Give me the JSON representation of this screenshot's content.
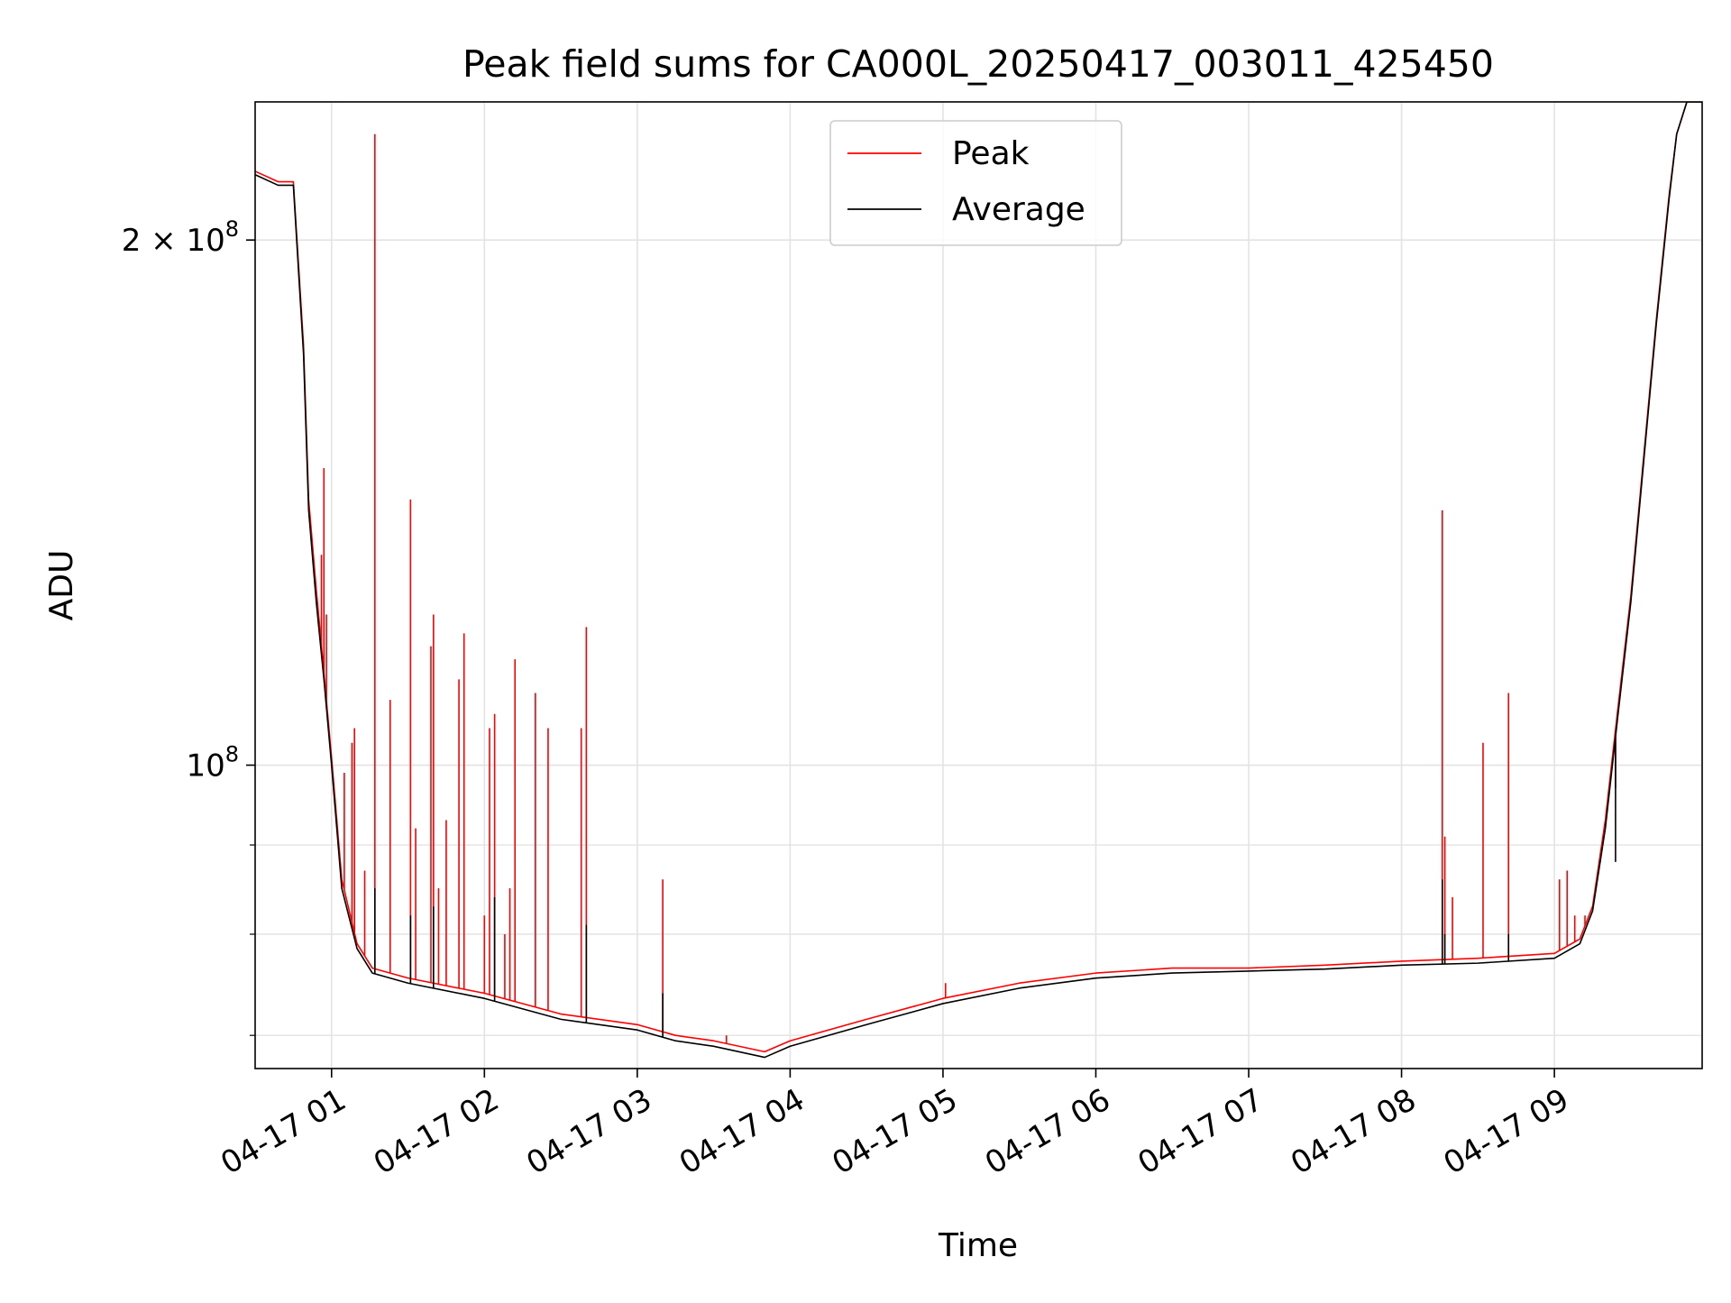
{
  "chart_data": {
    "type": "line",
    "title": "Peak field sums for CA000L_20250417_003011_425450",
    "xlabel": "Time",
    "ylabel": "ADU",
    "y_scale": "log",
    "grid": true,
    "legend_position": "top-center",
    "xlim": [
      "2025-04-17T00:30",
      "2025-04-17T09:58"
    ],
    "ylim": [
      67000000.0,
      240000000.0
    ],
    "x_ticks": [
      {
        "value": "2025-04-17T01:00",
        "label": "04-17 01"
      },
      {
        "value": "2025-04-17T02:00",
        "label": "04-17 02"
      },
      {
        "value": "2025-04-17T03:00",
        "label": "04-17 03"
      },
      {
        "value": "2025-04-17T04:00",
        "label": "04-17 04"
      },
      {
        "value": "2025-04-17T05:00",
        "label": "04-17 05"
      },
      {
        "value": "2025-04-17T06:00",
        "label": "04-17 06"
      },
      {
        "value": "2025-04-17T07:00",
        "label": "04-17 07"
      },
      {
        "value": "2025-04-17T08:00",
        "label": "04-17 08"
      },
      {
        "value": "2025-04-17T09:00",
        "label": "04-17 09"
      }
    ],
    "y_major_ticks": [
      {
        "value": 100000000,
        "base": "10",
        "exp": "8",
        "coef": ""
      },
      {
        "value": 200000000,
        "base": "10",
        "exp": "8",
        "coef": "2 × "
      }
    ],
    "y_minor_ticks": [
      70000000,
      80000000,
      90000000
    ],
    "series": [
      {
        "name": "Peak",
        "color": "#ff0000",
        "points": [
          [
            "2025-04-17T00:30",
            219000000.0
          ],
          [
            "2025-04-17T00:39",
            216000000.0
          ],
          [
            "2025-04-17T00:45",
            216000000.0
          ],
          [
            "2025-04-17T00:49",
            174000000.0
          ],
          [
            "2025-04-17T00:51",
            142000000.0
          ],
          [
            "2025-04-17T00:54",
            126000000.0
          ],
          [
            "2025-04-17T00:57",
            113000000.0
          ],
          [
            "2025-04-17T01:00",
            101000000.0
          ],
          [
            "2025-04-17T01:04",
            86000000.0
          ],
          [
            "2025-04-17T01:10",
            79000000.0
          ],
          [
            "2025-04-17T01:16",
            76500000.0
          ],
          [
            "2025-04-17T01:30",
            75500000.0
          ],
          [
            "2025-04-17T02:00",
            74000000.0
          ],
          [
            "2025-04-17T02:30",
            72000000.0
          ],
          [
            "2025-04-17T03:00",
            71000000.0
          ],
          [
            "2025-04-17T03:15",
            70000000.0
          ],
          [
            "2025-04-17T03:30",
            69500000.0
          ],
          [
            "2025-04-17T03:50",
            68500000.0
          ],
          [
            "2025-04-17T04:00",
            69500000.0
          ],
          [
            "2025-04-17T04:30",
            71500000.0
          ],
          [
            "2025-04-17T05:00",
            73500000.0
          ],
          [
            "2025-04-17T05:30",
            75000000.0
          ],
          [
            "2025-04-17T06:00",
            76000000.0
          ],
          [
            "2025-04-17T06:30",
            76500000.0
          ],
          [
            "2025-04-17T07:00",
            76500000.0
          ],
          [
            "2025-04-17T07:30",
            76800000.0
          ],
          [
            "2025-04-17T08:00",
            77200000.0
          ],
          [
            "2025-04-17T08:30",
            77500000.0
          ],
          [
            "2025-04-17T09:00",
            78000000.0
          ],
          [
            "2025-04-17T09:10",
            79500000.0
          ],
          [
            "2025-04-17T09:15",
            83000000.0
          ],
          [
            "2025-04-17T09:20",
            93000000.0
          ],
          [
            "2025-04-17T09:25",
            108000000.0
          ],
          [
            "2025-04-17T09:30",
            125000000.0
          ],
          [
            "2025-04-17T09:35",
            150000000.0
          ],
          [
            "2025-04-17T09:40",
            180000000.0
          ],
          [
            "2025-04-17T09:45",
            212000000.0
          ],
          [
            "2025-04-17T09:48",
            230000000.0
          ],
          [
            "2025-04-17T09:52",
            240000000.0
          ],
          [
            "2025-04-17T09:58",
            240000000.0
          ]
        ],
        "spikes": [
          [
            "2025-04-17T00:56",
            132000000.0
          ],
          [
            "2025-04-17T00:57",
            148000000.0
          ],
          [
            "2025-04-17T00:58",
            122000000.0
          ],
          [
            "2025-04-17T01:05",
            99000000.0
          ],
          [
            "2025-04-17T01:08",
            103000000.0
          ],
          [
            "2025-04-17T01:09",
            105000000.0
          ],
          [
            "2025-04-17T01:13",
            87000000.0
          ],
          [
            "2025-04-17T01:17",
            230000000.0
          ],
          [
            "2025-04-17T01:23",
            109000000.0
          ],
          [
            "2025-04-17T01:31",
            142000000.0
          ],
          [
            "2025-04-17T01:33",
            92000000.0
          ],
          [
            "2025-04-17T01:39",
            117000000.0
          ],
          [
            "2025-04-17T01:40",
            122000000.0
          ],
          [
            "2025-04-17T01:42",
            85000000.0
          ],
          [
            "2025-04-17T01:45",
            93000000.0
          ],
          [
            "2025-04-17T01:50",
            112000000.0
          ],
          [
            "2025-04-17T01:52",
            119000000.0
          ],
          [
            "2025-04-17T02:00",
            82000000.0
          ],
          [
            "2025-04-17T02:02",
            105000000.0
          ],
          [
            "2025-04-17T02:04",
            107000000.0
          ],
          [
            "2025-04-17T02:08",
            80000000.0
          ],
          [
            "2025-04-17T02:10",
            85000000.0
          ],
          [
            "2025-04-17T02:12",
            115000000.0
          ],
          [
            "2025-04-17T02:20",
            110000000.0
          ],
          [
            "2025-04-17T02:25",
            105000000.0
          ],
          [
            "2025-04-17T02:38",
            105000000.0
          ],
          [
            "2025-04-17T02:40",
            120000000.0
          ],
          [
            "2025-04-17T03:10",
            86000000.0
          ],
          [
            "2025-04-17T03:35",
            70000000.0
          ],
          [
            "2025-04-17T05:01",
            75000000.0
          ],
          [
            "2025-04-17T08:16",
            140000000.0
          ],
          [
            "2025-04-17T08:17",
            91000000.0
          ],
          [
            "2025-04-17T08:20",
            84000000.0
          ],
          [
            "2025-04-17T08:32",
            103000000.0
          ],
          [
            "2025-04-17T08:42",
            110000000.0
          ],
          [
            "2025-04-17T09:02",
            86000000.0
          ],
          [
            "2025-04-17T09:05",
            87000000.0
          ],
          [
            "2025-04-17T09:08",
            82000000.0
          ],
          [
            "2025-04-17T09:12",
            82000000.0
          ],
          [
            "2025-04-17T09:18",
            88000000.0
          ],
          [
            "2025-04-17T09:24",
            97000000.0
          ]
        ]
      },
      {
        "name": "Average",
        "color": "#000000",
        "points": [
          [
            "2025-04-17T00:30",
            218000000.0
          ],
          [
            "2025-04-17T00:39",
            215000000.0
          ],
          [
            "2025-04-17T00:45",
            215000000.0
          ],
          [
            "2025-04-17T00:49",
            172000000.0
          ],
          [
            "2025-04-17T00:51",
            140000000.0
          ],
          [
            "2025-04-17T00:54",
            124000000.0
          ],
          [
            "2025-04-17T00:57",
            112000000.0
          ],
          [
            "2025-04-17T01:00",
            100000000.0
          ],
          [
            "2025-04-17T01:04",
            85000000.0
          ],
          [
            "2025-04-17T01:10",
            78500000.0
          ],
          [
            "2025-04-17T01:16",
            76000000.0
          ],
          [
            "2025-04-17T01:30",
            75000000.0
          ],
          [
            "2025-04-17T02:00",
            73500000.0
          ],
          [
            "2025-04-17T02:30",
            71500000.0
          ],
          [
            "2025-04-17T03:00",
            70500000.0
          ],
          [
            "2025-04-17T03:15",
            69500000.0
          ],
          [
            "2025-04-17T03:30",
            69000000.0
          ],
          [
            "2025-04-17T03:50",
            68000000.0
          ],
          [
            "2025-04-17T04:00",
            69000000.0
          ],
          [
            "2025-04-17T04:30",
            71000000.0
          ],
          [
            "2025-04-17T05:00",
            73000000.0
          ],
          [
            "2025-04-17T05:30",
            74500000.0
          ],
          [
            "2025-04-17T06:00",
            75500000.0
          ],
          [
            "2025-04-17T06:30",
            76000000.0
          ],
          [
            "2025-04-17T07:00",
            76200000.0
          ],
          [
            "2025-04-17T07:30",
            76400000.0
          ],
          [
            "2025-04-17T08:00",
            76800000.0
          ],
          [
            "2025-04-17T08:30",
            77000000.0
          ],
          [
            "2025-04-17T09:00",
            77500000.0
          ],
          [
            "2025-04-17T09:10",
            79000000.0
          ],
          [
            "2025-04-17T09:15",
            82500000.0
          ],
          [
            "2025-04-17T09:20",
            92000000.0
          ],
          [
            "2025-04-17T09:25",
            107000000.0
          ],
          [
            "2025-04-17T09:30",
            124000000.0
          ],
          [
            "2025-04-17T09:35",
            149000000.0
          ],
          [
            "2025-04-17T09:40",
            179000000.0
          ],
          [
            "2025-04-17T09:45",
            211000000.0
          ],
          [
            "2025-04-17T09:48",
            230000000.0
          ],
          [
            "2025-04-17T09:52",
            240000000.0
          ],
          [
            "2025-04-17T09:58",
            240000000.0
          ]
        ],
        "spikes": [
          [
            "2025-04-17T01:17",
            85000000.0
          ],
          [
            "2025-04-17T01:31",
            82000000.0
          ],
          [
            "2025-04-17T01:40",
            83000000.0
          ],
          [
            "2025-04-17T02:04",
            84000000.0
          ],
          [
            "2025-04-17T02:40",
            81000000.0
          ],
          [
            "2025-04-17T03:10",
            74000000.0
          ],
          [
            "2025-04-17T08:16",
            86000000.0
          ],
          [
            "2025-04-17T08:17",
            80000000.0
          ],
          [
            "2025-04-17T08:42",
            80000000.0
          ],
          [
            "2025-04-17T09:24",
            88000000.0
          ]
        ]
      }
    ]
  }
}
